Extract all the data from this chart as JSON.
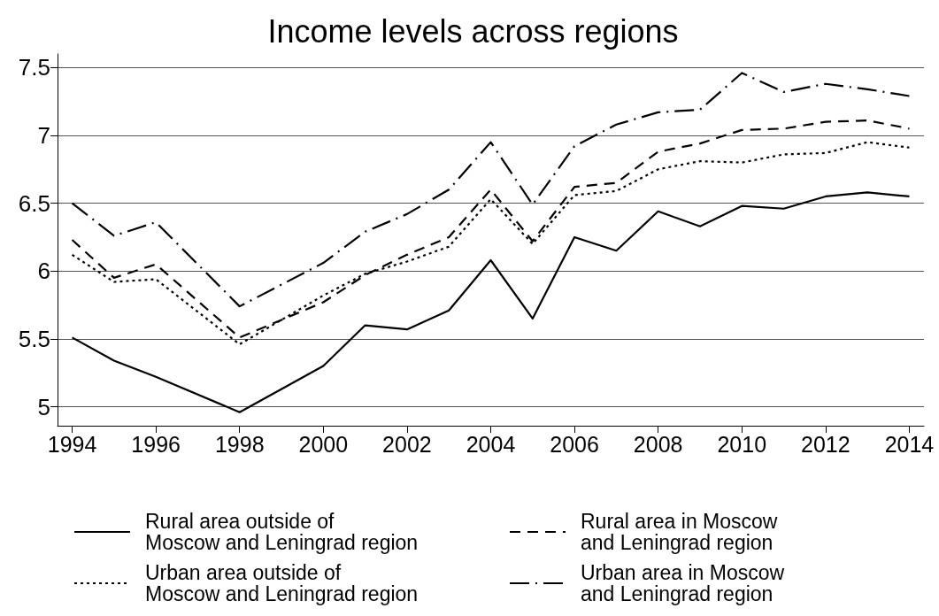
{
  "chart_data": {
    "type": "line",
    "title": "Income levels across regions",
    "x": [
      1994,
      1995,
      1996,
      1998,
      2000,
      2001,
      2002,
      2003,
      2004,
      2005,
      2006,
      2007,
      2008,
      2009,
      2010,
      2011,
      2012,
      2013,
      2014
    ],
    "series": [
      {
        "name": "Rural area outside of Moscow and Leningrad region",
        "color": "#000000",
        "line_style": "solid",
        "values": [
          5.51,
          5.34,
          5.22,
          4.96,
          5.3,
          5.6,
          5.57,
          5.71,
          6.08,
          5.65,
          6.25,
          6.15,
          6.44,
          6.33,
          6.48,
          6.46,
          6.55,
          6.58,
          6.55
        ]
      },
      {
        "name": "Rural area in Moscow and Leningrad region",
        "color": "#000000",
        "line_style": "dashed",
        "values": [
          6.23,
          5.95,
          6.05,
          5.51,
          5.77,
          5.97,
          6.12,
          6.25,
          6.6,
          6.22,
          6.62,
          6.65,
          6.88,
          6.94,
          7.04,
          7.05,
          7.1,
          7.11,
          7.05
        ]
      },
      {
        "name": "Urban area outside of Moscow and Leningrad region",
        "color": "#000000",
        "line_style": "dotted",
        "values": [
          6.12,
          5.92,
          5.94,
          5.46,
          5.82,
          5.98,
          6.07,
          6.18,
          6.53,
          6.2,
          6.56,
          6.59,
          6.75,
          6.81,
          6.8,
          6.86,
          6.87,
          6.95,
          6.91
        ]
      },
      {
        "name": "Urban area in Moscow and Leningrad region",
        "color": "#000000",
        "line_style": "dashdot",
        "values": [
          6.5,
          6.26,
          6.36,
          5.74,
          6.06,
          6.29,
          6.42,
          6.6,
          6.95,
          6.49,
          6.92,
          7.08,
          7.17,
          7.19,
          7.46,
          7.32,
          7.38,
          7.34,
          7.29
        ]
      }
    ],
    "xlim": [
      1993.65,
      2014.35
    ],
    "xticks": [
      1994,
      1996,
      1998,
      2000,
      2002,
      2004,
      2006,
      2008,
      2010,
      2012,
      2014
    ],
    "ylim": [
      4.86,
      7.6
    ],
    "yticks": [
      5,
      5.5,
      6,
      6.5,
      7,
      7.5
    ],
    "grid": "y",
    "legend": "bottom",
    "marker": "none"
  }
}
